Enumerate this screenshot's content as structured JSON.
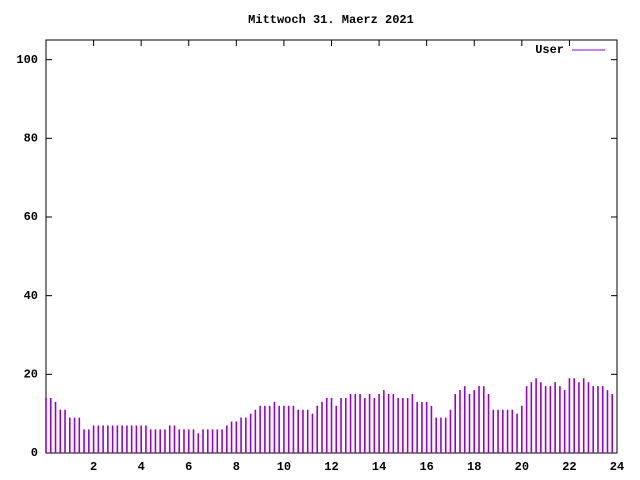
{
  "chart_data": {
    "type": "impulse",
    "title": "Mittwoch 31. Maerz 2021",
    "x": [
      0,
      0.2,
      0.4,
      0.6,
      0.8,
      1,
      1.2,
      1.4,
      1.6,
      1.8,
      2,
      2.2,
      2.4,
      2.6,
      2.8,
      3,
      3.2,
      3.4,
      3.6,
      3.8,
      4,
      4.2,
      4.4,
      4.6,
      4.8,
      5,
      5.2,
      5.4,
      5.6,
      5.8,
      6,
      6.2,
      6.4,
      6.6,
      6.8,
      7,
      7.2,
      7.4,
      7.6,
      7.8,
      8,
      8.2,
      8.4,
      8.6,
      8.8,
      9,
      9.2,
      9.4,
      9.6,
      9.8,
      10,
      10.2,
      10.4,
      10.6,
      10.8,
      11,
      11.2,
      11.4,
      11.6,
      11.8,
      12,
      12.2,
      12.4,
      12.6,
      12.8,
      13,
      13.2,
      13.4,
      13.6,
      13.8,
      14,
      14.2,
      14.4,
      14.6,
      14.8,
      15,
      15.2,
      15.4,
      15.6,
      15.8,
      16,
      16.2,
      16.4,
      16.6,
      16.8,
      17,
      17.2,
      17.4,
      17.6,
      17.8,
      18,
      18.2,
      18.4,
      18.6,
      18.8,
      19,
      19.2,
      19.4,
      19.6,
      19.8,
      20,
      20.2,
      20.4,
      20.6,
      20.8,
      21,
      21.2,
      21.4,
      21.6,
      21.8,
      22,
      22.2,
      22.4,
      22.6,
      22.8,
      23,
      23.2,
      23.4,
      23.6,
      23.8
    ],
    "series": [
      {
        "name": "User",
        "color": "#9400d3",
        "values": [
          14,
          14,
          13,
          11,
          11,
          9,
          9,
          9,
          6,
          6,
          7,
          7,
          7,
          7,
          7,
          7,
          7,
          7,
          7,
          7,
          7,
          7,
          6,
          6,
          6,
          6,
          7,
          7,
          6,
          6,
          6,
          6,
          5,
          6,
          6,
          6,
          6,
          6,
          7,
          8,
          8,
          9,
          9,
          10,
          11,
          12,
          12,
          12,
          13,
          12,
          12,
          12,
          12,
          11,
          11,
          11,
          10,
          12,
          13,
          14,
          14,
          12,
          14,
          14,
          15,
          15,
          15,
          14,
          15,
          14,
          15,
          16,
          15,
          15,
          14,
          14,
          14,
          15,
          13,
          13,
          13,
          12,
          9,
          9,
          9,
          11,
          15,
          16,
          17,
          15,
          16,
          17,
          17,
          15,
          11,
          11,
          11,
          11,
          11,
          10,
          12,
          17,
          18,
          19,
          18,
          17,
          17,
          18,
          17,
          16,
          19,
          19,
          18,
          19,
          18,
          17,
          17,
          17,
          16,
          15
        ]
      }
    ],
    "xlim": [
      0,
      24
    ],
    "xticks": [
      2,
      4,
      6,
      8,
      10,
      12,
      14,
      16,
      18,
      20,
      22,
      24
    ],
    "ylim": [
      0,
      105
    ],
    "yticks": [
      0,
      20,
      40,
      60,
      80,
      100
    ]
  }
}
